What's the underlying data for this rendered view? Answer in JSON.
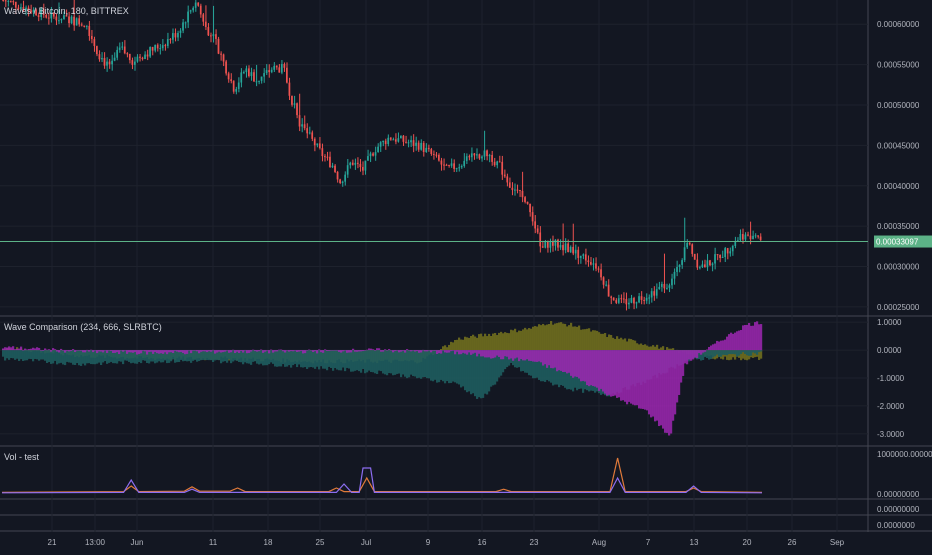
{
  "colors": {
    "background": "#131722",
    "grid": "#1e222d",
    "separator": "#434651",
    "up": "#26a69a",
    "down": "#ef5350",
    "price_line": "#5cb287",
    "price_badge": "#5cb287",
    "axis_text": "#b2b5be",
    "wave_olive": "#6f6d1e",
    "wave_teal": "#1e5c5e",
    "wave_magenta": "#9c27b0",
    "vol_orange": "#e07a3a",
    "vol_purple": "#8c6df0"
  },
  "header": {
    "title": "Waves / Bitcoin, 180, BITTREX"
  },
  "price_badge": "0.00033097",
  "wave_title": "Wave Comparison (234, 666, SLRBTC)",
  "vol_title": "Vol - test",
  "chart_data": [
    {
      "type": "candlestick",
      "title": "Waves / Bitcoin, 180, BITTREX",
      "y_ticks": [
        "0.00060000",
        "0.00055000",
        "0.00050000",
        "0.00045000",
        "0.00040000",
        "0.00035000",
        "0.00030000",
        "0.00025000"
      ],
      "ylim": [
        0.00024,
        0.00063
      ],
      "last_price": 0.00033097,
      "path": [
        [
          0.0,
          0.00063
        ],
        [
          0.03,
          0.00062
        ],
        [
          0.06,
          0.00061
        ],
        [
          0.09,
          0.000605
        ],
        [
          0.11,
          0.0006
        ],
        [
          0.125,
          0.000565
        ],
        [
          0.14,
          0.000545
        ],
        [
          0.155,
          0.00057
        ],
        [
          0.17,
          0.000555
        ],
        [
          0.19,
          0.000565
        ],
        [
          0.21,
          0.000575
        ],
        [
          0.23,
          0.00059
        ],
        [
          0.255,
          0.00063
        ],
        [
          0.265,
          0.0006
        ],
        [
          0.28,
          0.00058
        ],
        [
          0.29,
          0.000555
        ],
        [
          0.305,
          0.00052
        ],
        [
          0.32,
          0.000545
        ],
        [
          0.335,
          0.00053
        ],
        [
          0.355,
          0.000545
        ],
        [
          0.37,
          0.000545
        ],
        [
          0.38,
          0.00051
        ],
        [
          0.39,
          0.00048
        ],
        [
          0.405,
          0.00046
        ],
        [
          0.42,
          0.00044
        ],
        [
          0.435,
          0.000425
        ],
        [
          0.445,
          0.000405
        ],
        [
          0.46,
          0.00043
        ],
        [
          0.475,
          0.00042
        ],
        [
          0.49,
          0.000445
        ],
        [
          0.51,
          0.00046
        ],
        [
          0.53,
          0.000455
        ],
        [
          0.55,
          0.00045
        ],
        [
          0.57,
          0.000435
        ],
        [
          0.585,
          0.00042
        ],
        [
          0.6,
          0.000425
        ],
        [
          0.62,
          0.000435
        ],
        [
          0.64,
          0.00044
        ],
        [
          0.655,
          0.000425
        ],
        [
          0.67,
          0.0004
        ],
        [
          0.685,
          0.000385
        ],
        [
          0.7,
          0.00036
        ],
        [
          0.71,
          0.00032
        ],
        [
          0.72,
          0.00033
        ],
        [
          0.74,
          0.000325
        ],
        [
          0.76,
          0.000315
        ],
        [
          0.78,
          0.000305
        ],
        [
          0.79,
          0.00029
        ],
        [
          0.8,
          0.000265
        ],
        [
          0.815,
          0.000255
        ],
        [
          0.83,
          0.000258
        ],
        [
          0.85,
          0.000265
        ],
        [
          0.87,
          0.000275
        ],
        [
          0.885,
          0.000285
        ],
        [
          0.895,
          0.00031
        ],
        [
          0.905,
          0.00033
        ],
        [
          0.915,
          0.000305
        ],
        [
          0.925,
          0.0003
        ],
        [
          0.94,
          0.00031
        ],
        [
          0.955,
          0.00032
        ],
        [
          0.965,
          0.00033
        ],
        [
          0.975,
          0.00034
        ],
        [
          0.985,
          0.000335
        ],
        [
          1.0,
          0.000331
        ]
      ]
    },
    {
      "type": "area",
      "title": "Wave Comparison (234, 666, SLRBTC)",
      "y_ticks": [
        "1.0000",
        "0.0000",
        "-1.0000",
        "-2.0000",
        "-3.0000"
      ],
      "ylim": [
        -3.4,
        1.15
      ],
      "series": [
        {
          "name": "olive",
          "points": [
            [
              0,
              0.1
            ],
            [
              0.1,
              -0.2
            ],
            [
              0.2,
              -0.3
            ],
            [
              0.3,
              -0.3
            ],
            [
              0.4,
              -0.4
            ],
            [
              0.5,
              -0.4
            ],
            [
              0.55,
              -0.4
            ],
            [
              0.6,
              0.4
            ],
            [
              0.65,
              0.6
            ],
            [
              0.7,
              0.8
            ],
            [
              0.72,
              1.0
            ],
            [
              0.75,
              0.9
            ],
            [
              0.8,
              0.5
            ],
            [
              0.85,
              0.2
            ],
            [
              0.9,
              -0.1
            ],
            [
              0.95,
              -0.3
            ],
            [
              1.0,
              -0.3
            ]
          ]
        },
        {
          "name": "teal",
          "points": [
            [
              0,
              -0.3
            ],
            [
              0.1,
              -0.5
            ],
            [
              0.2,
              -0.4
            ],
            [
              0.3,
              -0.4
            ],
            [
              0.4,
              -0.6
            ],
            [
              0.5,
              -0.8
            ],
            [
              0.6,
              -1.2
            ],
            [
              0.63,
              -1.8
            ],
            [
              0.67,
              -0.5
            ],
            [
              0.7,
              -1.0
            ],
            [
              0.75,
              -1.4
            ],
            [
              0.8,
              -1.6
            ],
            [
              0.85,
              -1.1
            ],
            [
              0.9,
              -0.4
            ],
            [
              0.95,
              -0.2
            ],
            [
              1.0,
              -0.1
            ]
          ]
        },
        {
          "name": "magenta",
          "points": [
            [
              0,
              0.1
            ],
            [
              0.1,
              -0.05
            ],
            [
              0.2,
              -0.1
            ],
            [
              0.3,
              -0.05
            ],
            [
              0.4,
              -0.05
            ],
            [
              0.5,
              0.0
            ],
            [
              0.6,
              -0.1
            ],
            [
              0.7,
              -0.4
            ],
            [
              0.75,
              -0.9
            ],
            [
              0.8,
              -1.6
            ],
            [
              0.85,
              -2.2
            ],
            [
              0.88,
              -3.1
            ],
            [
              0.9,
              -0.5
            ],
            [
              0.95,
              0.4
            ],
            [
              0.98,
              0.9
            ],
            [
              1.0,
              1.0
            ]
          ]
        }
      ]
    },
    {
      "type": "line",
      "title": "Vol - test",
      "y_ticks": [
        "1000000.00000000",
        "0.00000000"
      ],
      "ylim": [
        0,
        1000000
      ],
      "series": [
        {
          "name": "orange",
          "points": [
            [
              0,
              40000
            ],
            [
              0.16,
              60000
            ],
            [
              0.17,
              200000
            ],
            [
              0.18,
              60000
            ],
            [
              0.24,
              70000
            ],
            [
              0.25,
              180000
            ],
            [
              0.26,
              70000
            ],
            [
              0.3,
              70000
            ],
            [
              0.31,
              150000
            ],
            [
              0.32,
              60000
            ],
            [
              0.43,
              60000
            ],
            [
              0.44,
              150000
            ],
            [
              0.45,
              60000
            ],
            [
              0.47,
              60000
            ],
            [
              0.48,
              400000
            ],
            [
              0.49,
              60000
            ],
            [
              0.65,
              60000
            ],
            [
              0.66,
              120000
            ],
            [
              0.67,
              60000
            ],
            [
              0.8,
              60000
            ],
            [
              0.81,
              900000
            ],
            [
              0.82,
              60000
            ],
            [
              0.9,
              60000
            ],
            [
              0.91,
              150000
            ],
            [
              0.92,
              60000
            ],
            [
              1.0,
              40000
            ]
          ]
        },
        {
          "name": "purple",
          "points": [
            [
              0,
              30000
            ],
            [
              0.16,
              40000
            ],
            [
              0.17,
              350000
            ],
            [
              0.18,
              40000
            ],
            [
              0.24,
              40000
            ],
            [
              0.25,
              120000
            ],
            [
              0.26,
              40000
            ],
            [
              0.44,
              40000
            ],
            [
              0.45,
              250000
            ],
            [
              0.46,
              40000
            ],
            [
              0.47,
              40000
            ],
            [
              0.475,
              650000
            ],
            [
              0.485,
              650000
            ],
            [
              0.49,
              40000
            ],
            [
              0.8,
              40000
            ],
            [
              0.81,
              400000
            ],
            [
              0.82,
              40000
            ],
            [
              0.9,
              40000
            ],
            [
              0.91,
              200000
            ],
            [
              0.92,
              40000
            ],
            [
              1.0,
              30000
            ]
          ]
        }
      ]
    },
    {
      "type": "axis",
      "x_ticks": [
        "21",
        "13:00",
        "Jun",
        "11",
        "18",
        "25",
        "Jul",
        "9",
        "16",
        "23",
        "Aug",
        "7",
        "13",
        "20",
        "26",
        "Sep"
      ],
      "extra_y_ticks": [
        "0.00000000",
        "0.0000000"
      ]
    }
  ]
}
